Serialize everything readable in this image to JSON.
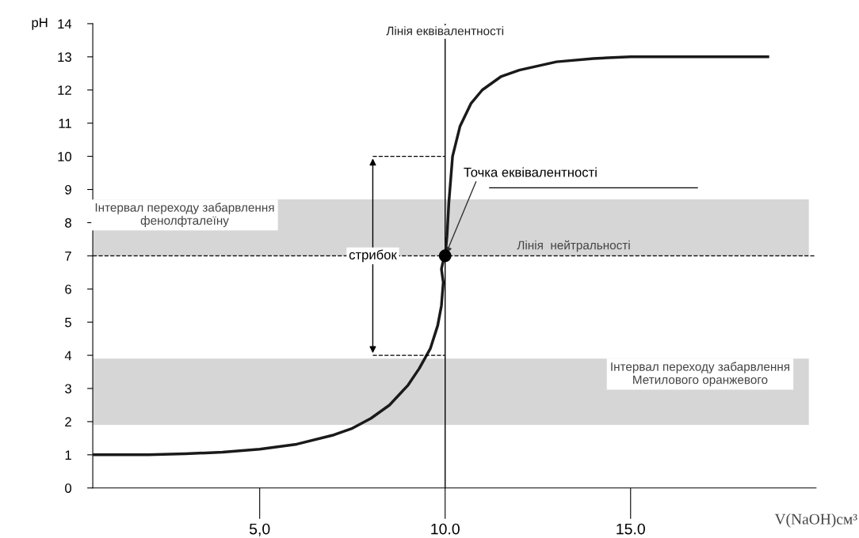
{
  "chart_data": {
    "type": "line",
    "xlabel": "V(NaOH)см³",
    "ylabel": "pH",
    "xlim": [
      0.5,
      20
    ],
    "ylim": [
      0,
      14
    ],
    "xticks": [
      {
        "value": 5,
        "label": "5,0"
      },
      {
        "value": 10,
        "label": "10.0"
      },
      {
        "value": 15,
        "label": "15.0"
      }
    ],
    "yticks": [
      0,
      1,
      2,
      3,
      4,
      5,
      6,
      7,
      8,
      9,
      10,
      11,
      12,
      13,
      14
    ],
    "grid": false,
    "legend": false,
    "series": [
      {
        "color": "#1a1a1a",
        "x": [
          0.5,
          2,
          3,
          4,
          5,
          6,
          7,
          7.5,
          8,
          8.5,
          9,
          9.3,
          9.6,
          9.8,
          9.9,
          9.95,
          9.9,
          9.95,
          10,
          10.05,
          10.1,
          10.2,
          10.4,
          10.7,
          11,
          11.5,
          12,
          13,
          14,
          15,
          16.5,
          18.7
        ],
        "values": [
          1.0,
          1.0,
          1.03,
          1.08,
          1.17,
          1.32,
          1.6,
          1.8,
          2.1,
          2.5,
          3.1,
          3.6,
          4.2,
          4.9,
          5.5,
          6.2,
          6.6,
          6.85,
          7.0,
          7.6,
          8.6,
          10.0,
          10.9,
          11.6,
          12.0,
          12.4,
          12.6,
          12.85,
          12.95,
          13.0,
          13.0,
          13.0
        ]
      },
      {
        "type": "line",
        "color": "#000000",
        "line_style": "dashed",
        "x": [
          8.05,
          10
        ],
        "values": [
          10,
          10
        ]
      },
      {
        "type": "line",
        "color": "#000000",
        "line_style": "dashed",
        "x": [
          8.05,
          10
        ],
        "values": [
          4,
          4
        ]
      },
      {
        "type": "scatter",
        "color": "#000000",
        "marker": "circle",
        "x": [
          10
        ],
        "values": [
          7
        ]
      }
    ],
    "ref_lines": [
      {
        "axis": "x",
        "value": 10,
        "label": "Лінія еквівалентності",
        "color": "#000000",
        "line_style": "solid"
      },
      {
        "axis": "y",
        "value": 7,
        "label": "Лінія  нейтральності",
        "color": "#000000",
        "line_style": "dashed"
      }
    ],
    "bands": [
      {
        "axis": "y",
        "from": 7.0,
        "to": 8.7,
        "label": "Інтервал переходу забарвлення\nфенолфталеїну",
        "color": "#d6d6d6"
      },
      {
        "axis": "y",
        "from": 1.9,
        "to": 3.9,
        "label": "Інтервал переходу забарвлення\nМетилового оранжевого",
        "color": "#d6d6d6"
      }
    ],
    "annotations": [
      {
        "text": "стрибок",
        "x": 8.05,
        "y": 7
      },
      {
        "text": "Точка еквівалентності",
        "x": 10,
        "y": 7
      }
    ]
  }
}
